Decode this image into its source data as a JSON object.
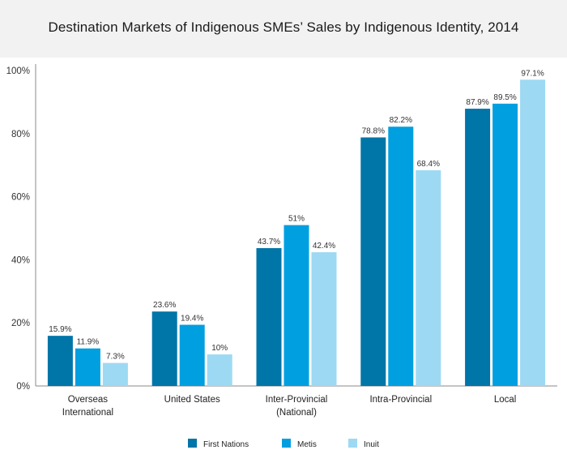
{
  "chart_data": {
    "type": "bar",
    "title": "Destination Markets of Indigenous SMEs’ Sales by Indigenous Identity, 2014",
    "categories": [
      [
        "Overseas",
        "International"
      ],
      [
        "United States"
      ],
      [
        "Inter-Provincial",
        "(National)"
      ],
      [
        "Intra-Provincial"
      ],
      [
        "Local"
      ]
    ],
    "series": [
      {
        "name": "First Nations",
        "color": "#0075a8",
        "values": [
          15.9,
          23.6,
          43.7,
          78.8,
          87.9
        ],
        "labels": [
          "15.9%",
          "23.6%",
          "43.7%",
          "78.8%",
          "87.9%"
        ]
      },
      {
        "name": "Metis",
        "color": "#009fe0",
        "values": [
          11.9,
          19.4,
          51,
          82.2,
          89.5
        ],
        "labels": [
          "11.9%",
          "19.4%",
          "51%",
          "82.2%",
          "89.5%"
        ]
      },
      {
        "name": "Inuit",
        "color": "#9dd9f3",
        "values": [
          7.3,
          10,
          42.4,
          68.4,
          97.1
        ],
        "labels": [
          "7.3%",
          "10%",
          "42.4%",
          "68.4%",
          "97.1%"
        ]
      }
    ],
    "ylim": [
      0,
      100
    ],
    "yticks": [
      "0%",
      "20%",
      "40%",
      "60%",
      "80%",
      "100%"
    ],
    "ytick_values": [
      0,
      20,
      40,
      60,
      80,
      100
    ],
    "grid": false,
    "legend_position": "bottom-center",
    "axis_color": "#888888"
  }
}
